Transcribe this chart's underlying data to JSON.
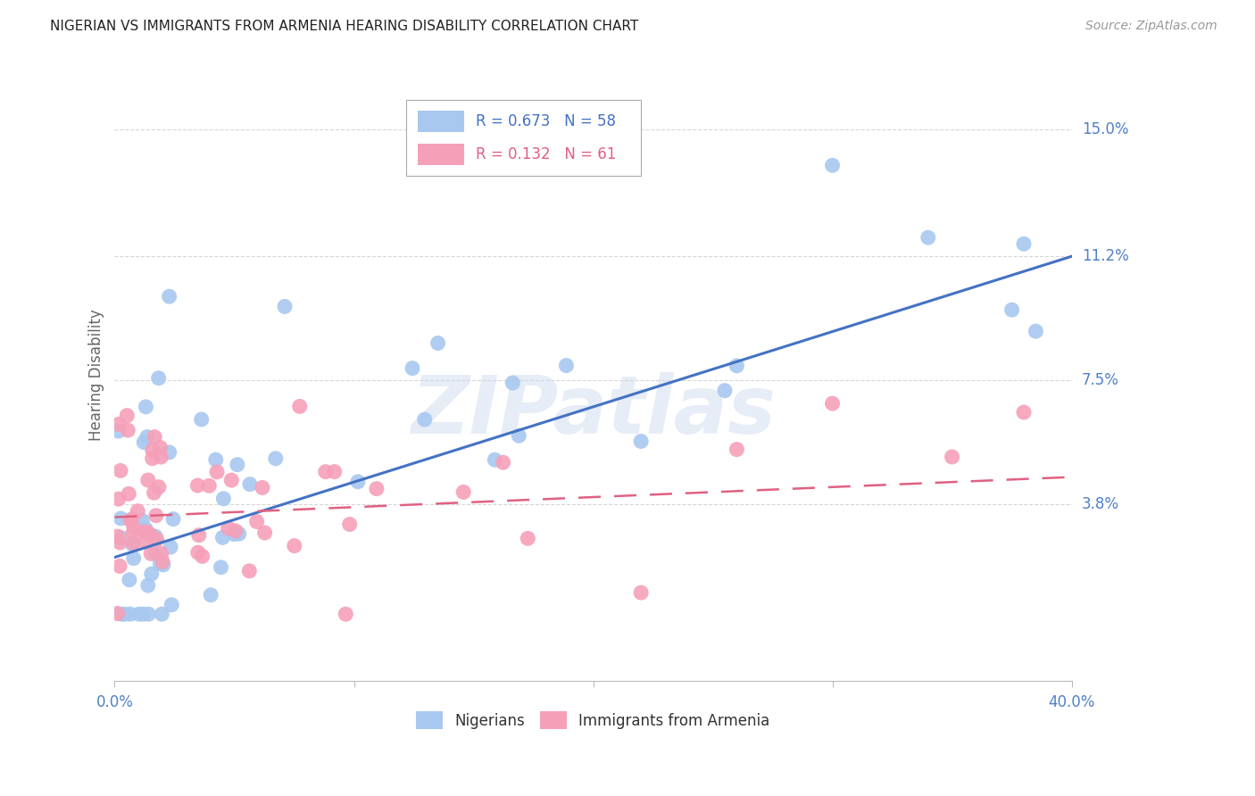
{
  "title": "NIGERIAN VS IMMIGRANTS FROM ARMENIA HEARING DISABILITY CORRELATION CHART",
  "source": "Source: ZipAtlas.com",
  "ylabel": "Hearing Disability",
  "ytick_labels": [
    "15.0%",
    "11.2%",
    "7.5%",
    "3.8%"
  ],
  "ytick_values": [
    0.15,
    0.112,
    0.075,
    0.038
  ],
  "xmin": 0.0,
  "xmax": 0.4,
  "ymin": -0.015,
  "ymax": 0.168,
  "blue_color": "#A8C8F0",
  "pink_color": "#F5A0B8",
  "blue_line_color": "#4472C4",
  "pink_line_color": "#E06080",
  "legend_blue_R": "0.673",
  "legend_blue_N": "58",
  "legend_pink_R": "0.132",
  "legend_pink_N": "61",
  "watermark": "ZIPatlas",
  "blue_trend_y_start": 0.022,
  "blue_trend_y_end": 0.112,
  "pink_trend_y_start": 0.034,
  "pink_trend_y_end": 0.046,
  "grid_color": "#CCCCCC",
  "background_color": "#FFFFFF",
  "title_fontsize": 11,
  "axis_label_color": "#5080C8",
  "ylabel_color": "#666666"
}
